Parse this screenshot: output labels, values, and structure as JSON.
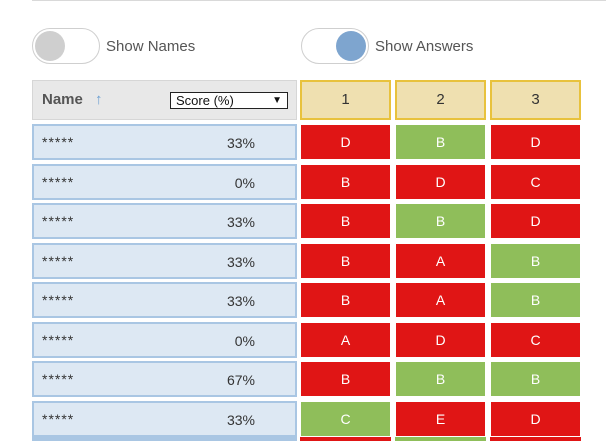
{
  "toggles": {
    "show_names": {
      "label": "Show Names",
      "on": false
    },
    "show_answers": {
      "label": "Show Answers",
      "on": true
    }
  },
  "header": {
    "name_label": "Name",
    "sort_arrow": "↑",
    "score_select": "Score (%)",
    "select_caret": "▼",
    "questions": [
      "1",
      "2",
      "3"
    ]
  },
  "colors": {
    "correct": "#8fbe5a",
    "incorrect": "#e01515",
    "name_cell": "#dde8f3",
    "question_header": "#efe0b0"
  },
  "rows": [
    {
      "name": "*****",
      "score": "33%",
      "answers": [
        {
          "v": "D",
          "c": false
        },
        {
          "v": "B",
          "c": true
        },
        {
          "v": "D",
          "c": false
        }
      ]
    },
    {
      "name": "*****",
      "score": "0%",
      "answers": [
        {
          "v": "B",
          "c": false
        },
        {
          "v": "D",
          "c": false
        },
        {
          "v": "C",
          "c": false
        }
      ]
    },
    {
      "name": "*****",
      "score": "33%",
      "answers": [
        {
          "v": "B",
          "c": false
        },
        {
          "v": "B",
          "c": true
        },
        {
          "v": "D",
          "c": false
        }
      ]
    },
    {
      "name": "*****",
      "score": "33%",
      "answers": [
        {
          "v": "B",
          "c": false
        },
        {
          "v": "A",
          "c": false
        },
        {
          "v": "B",
          "c": true
        }
      ]
    },
    {
      "name": "*****",
      "score": "33%",
      "answers": [
        {
          "v": "B",
          "c": false
        },
        {
          "v": "A",
          "c": false
        },
        {
          "v": "B",
          "c": true
        }
      ]
    },
    {
      "name": "*****",
      "score": "0%",
      "answers": [
        {
          "v": "A",
          "c": false
        },
        {
          "v": "D",
          "c": false
        },
        {
          "v": "C",
          "c": false
        }
      ]
    },
    {
      "name": "*****",
      "score": "67%",
      "answers": [
        {
          "v": "B",
          "c": false
        },
        {
          "v": "B",
          "c": true
        },
        {
          "v": "B",
          "c": true
        }
      ]
    },
    {
      "name": "*****",
      "score": "33%",
      "answers": [
        {
          "v": "C",
          "c": true
        },
        {
          "v": "E",
          "c": false
        },
        {
          "v": "D",
          "c": false
        }
      ]
    }
  ]
}
